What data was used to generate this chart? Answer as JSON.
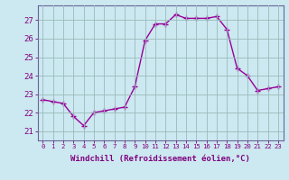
{
  "x": [
    0,
    1,
    2,
    3,
    4,
    5,
    6,
    7,
    8,
    9,
    10,
    11,
    12,
    13,
    14,
    15,
    16,
    17,
    18,
    19,
    20,
    21,
    22,
    23
  ],
  "y": [
    22.7,
    22.6,
    22.5,
    21.8,
    21.3,
    22.0,
    22.1,
    22.2,
    22.3,
    23.4,
    25.9,
    26.8,
    26.8,
    27.3,
    27.1,
    27.1,
    27.1,
    27.2,
    26.5,
    24.4,
    24.0,
    23.2,
    23.3,
    23.4
  ],
  "line_color": "#990099",
  "marker": "+",
  "marker_color": "#990099",
  "bg_color": "#cce8f0",
  "grid_color": "#99bbbb",
  "ylabel_ticks": [
    21,
    22,
    23,
    24,
    25,
    26,
    27
  ],
  "xlabel": "Windchill (Refroidissement éolien,°C)",
  "ylim": [
    20.5,
    27.8
  ],
  "xlim": [
    -0.5,
    23.5
  ],
  "xtick_labels": [
    "0",
    "1",
    "2",
    "3",
    "4",
    "5",
    "6",
    "7",
    "8",
    "9",
    "10",
    "11",
    "12",
    "13",
    "14",
    "15",
    "16",
    "17",
    "18",
    "19",
    "20",
    "21",
    "22",
    "23"
  ],
  "line_width": 1.0,
  "marker_size": 4,
  "tick_color": "#800080",
  "label_color": "#800080",
  "axis_color": "#666699",
  "xlabel_fontsize": 6.5,
  "ytick_fontsize": 6.5,
  "xtick_fontsize": 5.2
}
